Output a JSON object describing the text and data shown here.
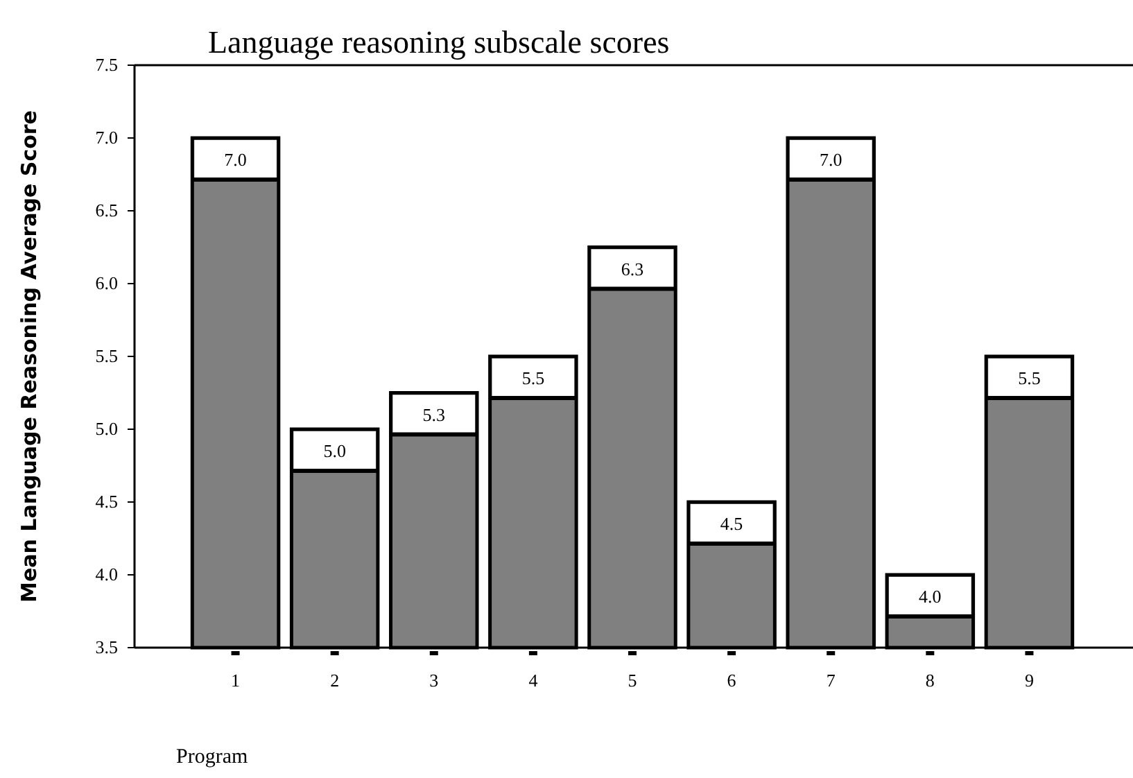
{
  "chart_data": {
    "type": "bar",
    "title": "Language reasoning subscale scores",
    "xlabel": "Program",
    "ylabel": "Mean Language Reasoning Average Score",
    "categories": [
      "1",
      "2",
      "3",
      "4",
      "5",
      "6",
      "7",
      "8",
      "9"
    ],
    "values": [
      7.0,
      5.0,
      5.25,
      5.5,
      6.25,
      4.5,
      7.0,
      4.0,
      5.5
    ],
    "value_labels": [
      "7.0",
      "5.0",
      "5.3",
      "5.5",
      "6.3",
      "4.5",
      "7.0",
      "4.0",
      "5.5"
    ],
    "color": "#808080",
    "ylim": [
      3.5,
      7.5
    ],
    "yticks": [
      {
        "value": 3.5,
        "label": "3.5"
      },
      {
        "value": 4,
        "label": "4.0"
      },
      {
        "value": 4.5,
        "label": "4.5"
      },
      {
        "value": 5,
        "label": "5.0"
      },
      {
        "value": 5.5,
        "label": "5.5"
      },
      {
        "value": 6,
        "label": "6.0"
      },
      {
        "value": 6.5,
        "label": "6.5"
      },
      {
        "value": 7,
        "label": "7.0"
      },
      {
        "value": 7.5,
        "label": "7.5"
      }
    ],
    "grid": false
  }
}
